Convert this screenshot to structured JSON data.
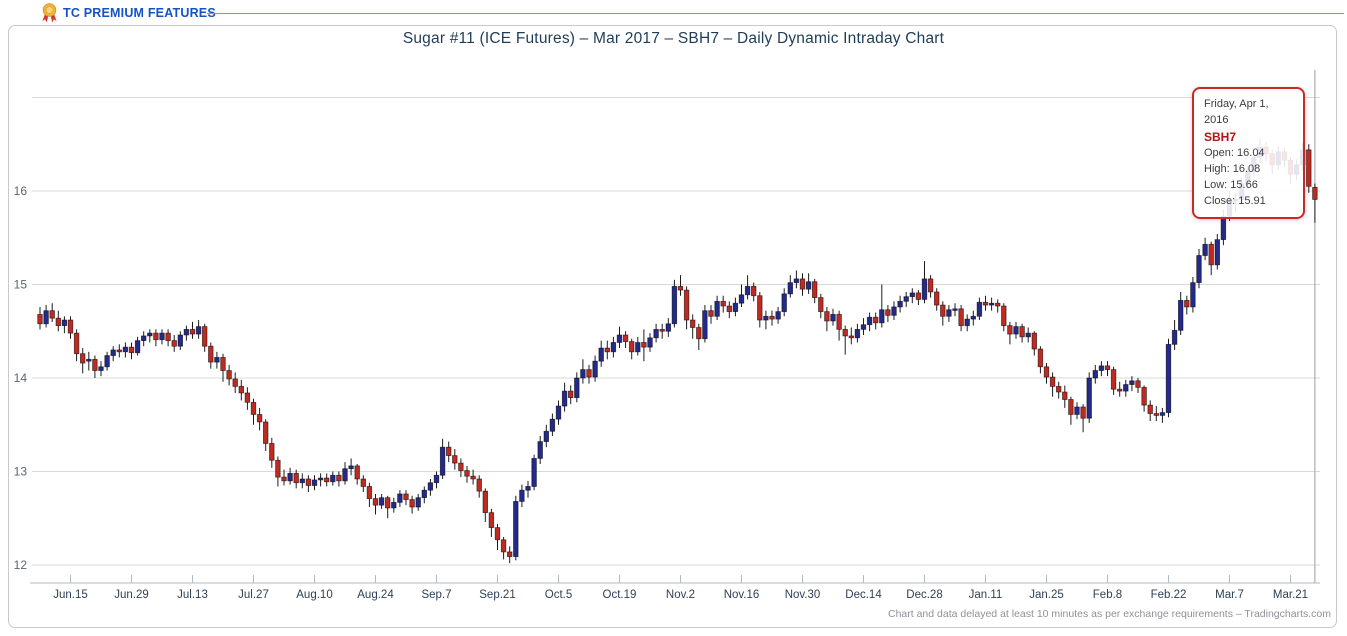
{
  "header": {
    "brand": "TC PREMIUM FEATURES"
  },
  "chart": {
    "title": "Sugar #11 (ICE Futures) – Mar 2017 – SBH7 – Daily Dynamic Intraday Chart",
    "footer": "Chart and data delayed at least 10 minutes as per exchange requirements – Tradingcharts.com"
  },
  "tooltip": {
    "date": "Friday, Apr 1, 2016",
    "symbol": "SBH7",
    "lines": [
      "Open: 16.04",
      "High: 16.08",
      "Low: 15.66",
      "Close: 15.91"
    ]
  },
  "chart_data": {
    "type": "candlestick",
    "title": "Sugar #11 (ICE Futures) – Mar 2017 – SBH7 – Daily Dynamic Intraday Chart",
    "xlabel": "",
    "ylabel": "",
    "y_ticks": [
      16,
      15,
      14,
      13,
      12
    ],
    "gridline_levels": [
      17,
      16,
      15,
      14,
      13,
      12
    ],
    "ylim": [
      11.9,
      17.3
    ],
    "grid": true,
    "x_ticks": [
      "Jun.15",
      "Jun.29",
      "Jul.13",
      "Jul.27",
      "Aug.10",
      "Aug.24",
      "Sep.7",
      "Sep.21",
      "Oct.5",
      "Oct.19",
      "Nov.2",
      "Nov.16",
      "Nov.30",
      "Dec.14",
      "Dec.28",
      "Jan.11",
      "Jan.25",
      "Feb.8",
      "Feb.22",
      "Mar.7",
      "Mar.21"
    ],
    "x_tick_indices": [
      5,
      15,
      25,
      35,
      45,
      55,
      65,
      75,
      85,
      95,
      105,
      115,
      125,
      135,
      145,
      155,
      165,
      175,
      185,
      195,
      205
    ],
    "crosshair_index": 209,
    "up_color": "#232a8a",
    "down_color": "#bf2a21",
    "wick_color": "#1c1c1c",
    "hovered": {
      "date": "Friday, Apr 1, 2016",
      "symbol": "SBH7",
      "open": 16.04,
      "high": 16.08,
      "low": 15.66,
      "close": 15.91
    },
    "ohlc": [
      [
        14.68,
        14.76,
        14.52,
        14.58
      ],
      [
        14.58,
        14.78,
        14.54,
        14.72
      ],
      [
        14.72,
        14.8,
        14.6,
        14.64
      ],
      [
        14.64,
        14.72,
        14.5,
        14.56
      ],
      [
        14.56,
        14.66,
        14.48,
        14.62
      ],
      [
        14.62,
        14.66,
        14.42,
        14.48
      ],
      [
        14.48,
        14.52,
        14.18,
        14.26
      ],
      [
        14.26,
        14.32,
        14.05,
        14.16
      ],
      [
        14.18,
        14.28,
        14.08,
        14.2
      ],
      [
        14.2,
        14.24,
        14.0,
        14.08
      ],
      [
        14.08,
        14.18,
        14.02,
        14.12
      ],
      [
        14.12,
        14.28,
        14.08,
        14.24
      ],
      [
        14.24,
        14.34,
        14.18,
        14.3
      ],
      [
        14.3,
        14.36,
        14.22,
        14.28
      ],
      [
        14.28,
        14.38,
        14.22,
        14.33
      ],
      [
        14.33,
        14.38,
        14.2,
        14.27
      ],
      [
        14.27,
        14.44,
        14.24,
        14.4
      ],
      [
        14.4,
        14.5,
        14.34,
        14.45
      ],
      [
        14.45,
        14.52,
        14.38,
        14.48
      ],
      [
        14.48,
        14.52,
        14.34,
        14.41
      ],
      [
        14.41,
        14.52,
        14.36,
        14.48
      ],
      [
        14.48,
        14.52,
        14.34,
        14.4
      ],
      [
        14.4,
        14.46,
        14.28,
        14.34
      ],
      [
        14.34,
        14.5,
        14.3,
        14.46
      ],
      [
        14.46,
        14.56,
        14.4,
        14.52
      ],
      [
        14.52,
        14.6,
        14.42,
        14.47
      ],
      [
        14.47,
        14.62,
        14.42,
        14.55
      ],
      [
        14.55,
        14.58,
        14.28,
        14.34
      ],
      [
        14.34,
        14.38,
        14.1,
        14.17
      ],
      [
        14.17,
        14.28,
        14.1,
        14.22
      ],
      [
        14.22,
        14.26,
        13.96,
        14.08
      ],
      [
        14.08,
        14.14,
        13.92,
        13.99
      ],
      [
        13.99,
        14.06,
        13.84,
        13.91
      ],
      [
        13.91,
        13.98,
        13.76,
        13.84
      ],
      [
        13.84,
        13.9,
        13.66,
        13.74
      ],
      [
        13.74,
        13.78,
        13.5,
        13.61
      ],
      [
        13.61,
        13.68,
        13.44,
        13.53
      ],
      [
        13.53,
        13.56,
        13.22,
        13.3
      ],
      [
        13.3,
        13.36,
        13.04,
        13.12
      ],
      [
        13.12,
        13.16,
        12.84,
        12.94
      ],
      [
        12.94,
        13.02,
        12.85,
        12.9
      ],
      [
        12.9,
        13.04,
        12.86,
        12.98
      ],
      [
        12.98,
        13.02,
        12.82,
        12.88
      ],
      [
        12.88,
        12.98,
        12.82,
        12.92
      ],
      [
        12.92,
        12.96,
        12.78,
        12.85
      ],
      [
        12.85,
        12.96,
        12.8,
        12.91
      ],
      [
        12.91,
        12.98,
        12.84,
        12.93
      ],
      [
        12.93,
        12.98,
        12.84,
        12.89
      ],
      [
        12.89,
        13.0,
        12.85,
        12.96
      ],
      [
        12.96,
        13.0,
        12.84,
        12.9
      ],
      [
        12.9,
        13.1,
        12.86,
        13.03
      ],
      [
        13.03,
        13.14,
        12.96,
        13.06
      ],
      [
        13.06,
        13.08,
        12.86,
        12.92
      ],
      [
        12.92,
        12.96,
        12.78,
        12.84
      ],
      [
        12.84,
        12.88,
        12.62,
        12.71
      ],
      [
        12.71,
        12.76,
        12.54,
        12.64
      ],
      [
        12.64,
        12.76,
        12.6,
        12.72
      ],
      [
        12.72,
        12.74,
        12.5,
        12.61
      ],
      [
        12.61,
        12.72,
        12.56,
        12.67
      ],
      [
        12.67,
        12.8,
        12.62,
        12.76
      ],
      [
        12.76,
        12.8,
        12.64,
        12.7
      ],
      [
        12.7,
        12.74,
        12.55,
        12.62
      ],
      [
        12.62,
        12.76,
        12.58,
        12.72
      ],
      [
        12.72,
        12.84,
        12.66,
        12.8
      ],
      [
        12.8,
        12.92,
        12.74,
        12.88
      ],
      [
        12.88,
        13.0,
        12.82,
        12.96
      ],
      [
        12.96,
        13.35,
        12.92,
        13.26
      ],
      [
        13.26,
        13.32,
        13.1,
        13.17
      ],
      [
        13.17,
        13.24,
        13.02,
        13.09
      ],
      [
        13.09,
        13.14,
        12.94,
        13.01
      ],
      [
        13.01,
        13.06,
        12.88,
        12.95
      ],
      [
        12.95,
        13.02,
        12.86,
        12.92
      ],
      [
        12.92,
        12.96,
        12.72,
        12.79
      ],
      [
        12.79,
        12.82,
        12.46,
        12.56
      ],
      [
        12.56,
        12.6,
        12.3,
        12.4
      ],
      [
        12.4,
        12.44,
        12.16,
        12.27
      ],
      [
        12.27,
        12.3,
        12.06,
        12.14
      ],
      [
        12.14,
        12.2,
        12.02,
        12.09
      ],
      [
        12.09,
        12.74,
        12.05,
        12.68
      ],
      [
        12.68,
        12.86,
        12.62,
        12.8
      ],
      [
        12.8,
        12.9,
        12.72,
        12.84
      ],
      [
        12.84,
        13.18,
        12.8,
        13.14
      ],
      [
        13.14,
        13.38,
        13.08,
        13.32
      ],
      [
        13.32,
        13.5,
        13.26,
        13.43
      ],
      [
        13.43,
        13.62,
        13.38,
        13.56
      ],
      [
        13.56,
        13.76,
        13.5,
        13.7
      ],
      [
        13.7,
        13.95,
        13.64,
        13.86
      ],
      [
        13.86,
        13.92,
        13.72,
        13.79
      ],
      [
        13.79,
        14.06,
        13.74,
        14.0
      ],
      [
        14.0,
        14.2,
        13.94,
        14.09
      ],
      [
        14.09,
        14.14,
        13.94,
        14.01
      ],
      [
        14.01,
        14.24,
        13.96,
        14.18
      ],
      [
        14.18,
        14.4,
        14.12,
        14.32
      ],
      [
        14.32,
        14.4,
        14.2,
        14.28
      ],
      [
        14.28,
        14.44,
        14.22,
        14.38
      ],
      [
        14.38,
        14.55,
        14.32,
        14.46
      ],
      [
        14.46,
        14.5,
        14.32,
        14.39
      ],
      [
        14.39,
        14.42,
        14.2,
        14.28
      ],
      [
        14.28,
        14.44,
        14.24,
        14.38
      ],
      [
        14.38,
        14.52,
        14.18,
        14.33
      ],
      [
        14.33,
        14.48,
        14.28,
        14.43
      ],
      [
        14.43,
        14.58,
        14.38,
        14.52
      ],
      [
        14.52,
        14.58,
        14.42,
        14.5
      ],
      [
        14.5,
        14.64,
        14.44,
        14.58
      ],
      [
        14.58,
        15.05,
        14.54,
        14.98
      ],
      [
        14.98,
        15.1,
        14.88,
        14.94
      ],
      [
        14.94,
        14.98,
        14.52,
        14.62
      ],
      [
        14.62,
        14.68,
        14.42,
        14.54
      ],
      [
        14.54,
        14.58,
        14.3,
        14.42
      ],
      [
        14.42,
        14.78,
        14.38,
        14.72
      ],
      [
        14.72,
        14.78,
        14.58,
        14.66
      ],
      [
        14.66,
        14.88,
        14.62,
        14.82
      ],
      [
        14.82,
        14.88,
        14.7,
        14.77
      ],
      [
        14.77,
        14.82,
        14.64,
        14.71
      ],
      [
        14.71,
        14.86,
        14.66,
        14.8
      ],
      [
        14.8,
        15.0,
        14.76,
        14.89
      ],
      [
        14.89,
        15.1,
        14.84,
        14.98
      ],
      [
        14.98,
        15.02,
        14.82,
        14.88
      ],
      [
        14.88,
        14.92,
        14.54,
        14.62
      ],
      [
        14.62,
        14.72,
        14.52,
        14.66
      ],
      [
        14.66,
        14.72,
        14.56,
        14.63
      ],
      [
        14.63,
        14.76,
        14.58,
        14.71
      ],
      [
        14.71,
        14.96,
        14.66,
        14.9
      ],
      [
        14.9,
        15.1,
        14.86,
        15.02
      ],
      [
        15.02,
        15.15,
        14.96,
        15.06
      ],
      [
        15.06,
        15.12,
        14.88,
        14.95
      ],
      [
        14.95,
        15.12,
        14.9,
        15.03
      ],
      [
        15.03,
        15.06,
        14.8,
        14.86
      ],
      [
        14.86,
        14.9,
        14.64,
        14.71
      ],
      [
        14.71,
        14.76,
        14.5,
        14.61
      ],
      [
        14.61,
        14.74,
        14.56,
        14.68
      ],
      [
        14.68,
        14.72,
        14.4,
        14.52
      ],
      [
        14.52,
        14.56,
        14.25,
        14.45
      ],
      [
        14.45,
        14.54,
        14.36,
        14.43
      ],
      [
        14.43,
        14.58,
        14.38,
        14.52
      ],
      [
        14.52,
        14.64,
        14.46,
        14.57
      ],
      [
        14.57,
        14.7,
        14.5,
        14.65
      ],
      [
        14.65,
        14.7,
        14.52,
        14.59
      ],
      [
        14.59,
        15.0,
        14.54,
        14.73
      ],
      [
        14.73,
        14.78,
        14.6,
        14.67
      ],
      [
        14.67,
        14.82,
        14.62,
        14.76
      ],
      [
        14.76,
        14.88,
        14.7,
        14.82
      ],
      [
        14.82,
        14.92,
        14.76,
        14.87
      ],
      [
        14.87,
        14.96,
        14.8,
        14.91
      ],
      [
        14.91,
        14.94,
        14.78,
        14.84
      ],
      [
        14.84,
        15.25,
        14.8,
        15.06
      ],
      [
        15.06,
        15.1,
        14.86,
        14.92
      ],
      [
        14.92,
        14.96,
        14.72,
        14.78
      ],
      [
        14.78,
        14.82,
        14.56,
        14.66
      ],
      [
        14.66,
        14.78,
        14.6,
        14.73
      ],
      [
        14.73,
        14.8,
        14.66,
        14.74
      ],
      [
        14.74,
        14.78,
        14.5,
        14.56
      ],
      [
        14.56,
        14.68,
        14.5,
        14.63
      ],
      [
        14.63,
        14.72,
        14.56,
        14.66
      ],
      [
        14.66,
        14.86,
        14.62,
        14.81
      ],
      [
        14.81,
        14.88,
        14.72,
        14.78
      ],
      [
        14.78,
        14.86,
        14.72,
        14.8
      ],
      [
        14.8,
        14.84,
        14.7,
        14.77
      ],
      [
        14.77,
        14.8,
        14.5,
        14.56
      ],
      [
        14.56,
        14.6,
        14.36,
        14.47
      ],
      [
        14.47,
        14.6,
        14.42,
        14.55
      ],
      [
        14.55,
        14.58,
        14.38,
        14.44
      ],
      [
        14.44,
        14.54,
        14.38,
        14.48
      ],
      [
        14.48,
        14.5,
        14.24,
        14.31
      ],
      [
        14.31,
        14.34,
        14.05,
        14.12
      ],
      [
        14.12,
        14.16,
        13.94,
        14.01
      ],
      [
        14.01,
        14.06,
        13.8,
        13.91
      ],
      [
        13.91,
        13.96,
        13.78,
        13.85
      ],
      [
        13.85,
        13.92,
        13.68,
        13.77
      ],
      [
        13.77,
        13.8,
        13.5,
        13.61
      ],
      [
        13.61,
        13.74,
        13.56,
        13.69
      ],
      [
        13.69,
        13.72,
        13.42,
        13.57
      ],
      [
        13.57,
        14.06,
        13.52,
        14.0
      ],
      [
        14.0,
        14.14,
        13.94,
        14.08
      ],
      [
        14.08,
        14.18,
        14.02,
        14.13
      ],
      [
        14.13,
        14.18,
        14.02,
        14.09
      ],
      [
        14.09,
        14.12,
        13.82,
        13.88
      ],
      [
        13.88,
        13.96,
        13.8,
        13.86
      ],
      [
        13.86,
        13.98,
        13.8,
        13.93
      ],
      [
        13.93,
        14.02,
        13.86,
        13.97
      ],
      [
        13.97,
        14.0,
        13.84,
        13.9
      ],
      [
        13.9,
        13.92,
        13.64,
        13.71
      ],
      [
        13.71,
        13.76,
        13.54,
        13.62
      ],
      [
        13.62,
        13.7,
        13.54,
        13.6
      ],
      [
        13.6,
        13.68,
        13.52,
        13.63
      ],
      [
        13.63,
        14.42,
        13.58,
        14.36
      ],
      [
        14.36,
        14.62,
        14.3,
        14.51
      ],
      [
        14.51,
        14.92,
        14.46,
        14.83
      ],
      [
        14.83,
        14.88,
        14.68,
        14.76
      ],
      [
        14.76,
        15.08,
        14.7,
        15.02
      ],
      [
        15.02,
        15.38,
        14.96,
        15.31
      ],
      [
        15.31,
        15.5,
        15.26,
        15.43
      ],
      [
        15.43,
        15.46,
        15.1,
        15.21
      ],
      [
        15.21,
        15.54,
        15.16,
        15.48
      ],
      [
        15.48,
        15.8,
        15.42,
        15.73
      ],
      [
        15.73,
        16.0,
        15.68,
        15.89
      ],
      [
        15.89,
        15.98,
        15.78,
        15.91
      ],
      [
        15.91,
        16.14,
        15.86,
        16.08
      ],
      [
        16.08,
        16.26,
        16.02,
        16.21
      ],
      [
        16.21,
        16.42,
        16.16,
        16.36
      ],
      [
        16.36,
        16.56,
        16.3,
        16.47
      ],
      [
        16.47,
        16.52,
        16.32,
        16.4
      ],
      [
        16.4,
        16.44,
        16.18,
        16.28
      ],
      [
        16.28,
        16.48,
        16.22,
        16.42
      ],
      [
        16.42,
        16.46,
        16.26,
        16.33
      ],
      [
        16.33,
        16.36,
        16.08,
        16.18
      ],
      [
        16.18,
        16.34,
        16.12,
        16.28
      ],
      [
        16.28,
        16.52,
        16.22,
        16.44
      ],
      [
        16.44,
        16.5,
        15.98,
        16.05
      ],
      [
        16.04,
        16.08,
        15.66,
        15.91
      ]
    ]
  }
}
